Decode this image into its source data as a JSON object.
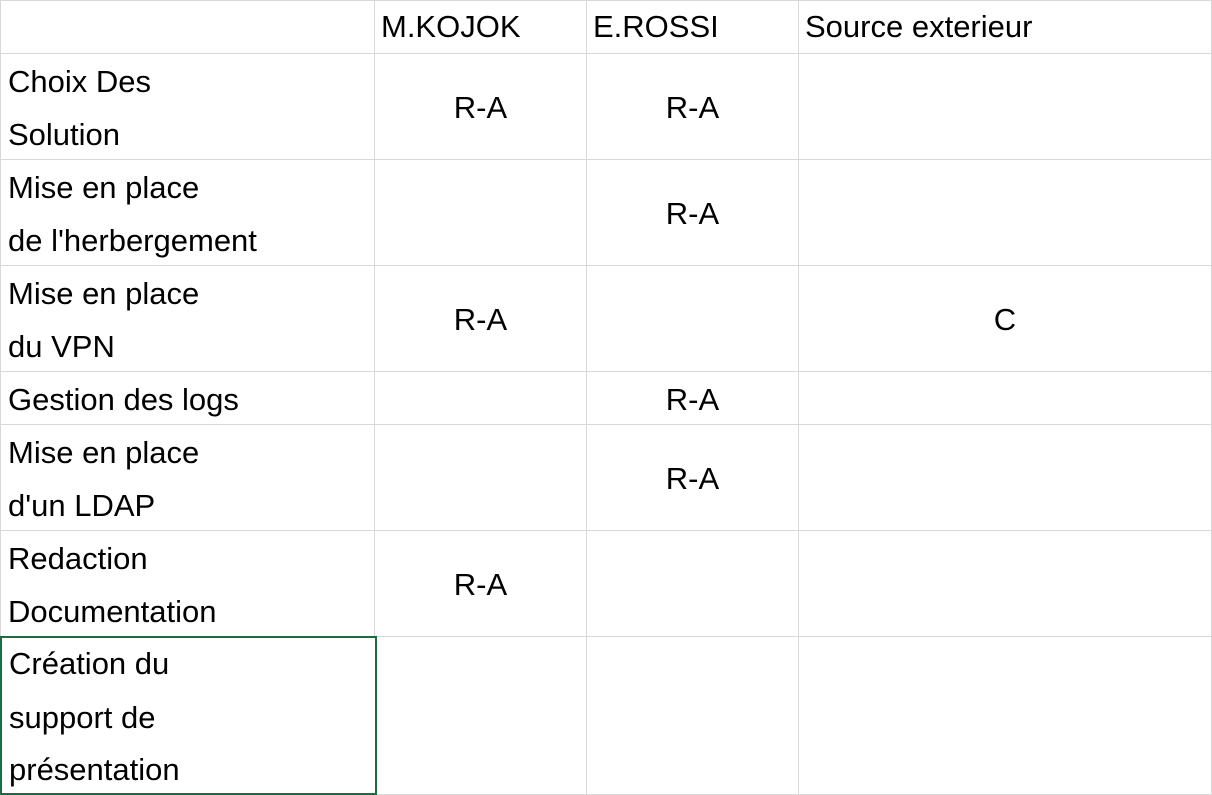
{
  "headers": [
    "",
    "M.KOJOK",
    "E.ROSSI",
    "Source exterieur"
  ],
  "rows": [
    {
      "label": [
        "Choix Des",
        "Solution"
      ],
      "cells": [
        "R-A",
        "R-A",
        ""
      ]
    },
    {
      "label": [
        "Mise en place",
        "de l'herbergement"
      ],
      "cells": [
        "",
        "R-A",
        ""
      ]
    },
    {
      "label": [
        "Mise en place",
        "du VPN"
      ],
      "cells": [
        "R-A",
        "",
        "C"
      ]
    },
    {
      "label": [
        "Gestion des logs"
      ],
      "cells": [
        "",
        "R-A",
        ""
      ]
    },
    {
      "label": [
        "Mise en place",
        "d'un LDAP"
      ],
      "cells": [
        "",
        "R-A",
        ""
      ]
    },
    {
      "label": [
        "Redaction",
        "Documentation"
      ],
      "cells": [
        "R-A",
        "",
        ""
      ]
    },
    {
      "label": [
        "Création du",
        "support de",
        "présentation"
      ],
      "cells": [
        "",
        "",
        ""
      ]
    }
  ],
  "colors": {
    "gridline": "#d9d9d9",
    "selection_border": "#1d6b40",
    "text": "#000000",
    "background": "#ffffff"
  }
}
